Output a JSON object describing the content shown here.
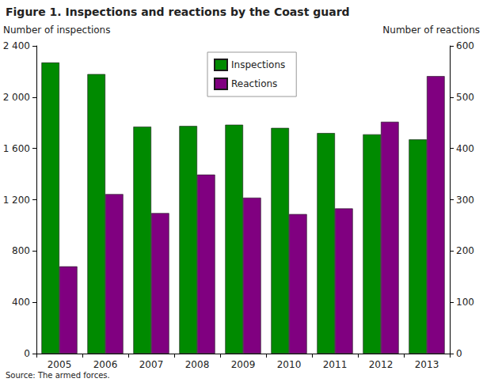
{
  "chart_data": {
    "type": "bar",
    "title": "Figure 1. Inspections and reactions by the Coast guard",
    "source": "Source: The armed forces.",
    "y_label": "Number of inspections",
    "y2_label": "Number of reactions",
    "categories": [
      "2005",
      "2006",
      "2007",
      "2008",
      "2009",
      "2010",
      "2011",
      "2012",
      "2013"
    ],
    "series": [
      {
        "name": "Inspections",
        "color": "#008a00",
        "values": [
          2270,
          2180,
          1770,
          1775,
          1785,
          1760,
          1720,
          1710,
          1670
        ]
      },
      {
        "name": "Reactions",
        "color": "#800080",
        "axis": "y2",
        "values": [
          170,
          311,
          274,
          349,
          304,
          272,
          283,
          452,
          541
        ]
      }
    ],
    "ylim": [
      0,
      2400
    ],
    "yticks": [
      0,
      400,
      800,
      {
        "value": 1200,
        "label": "1 200"
      },
      {
        "value": 1600,
        "label": "1 600"
      },
      {
        "value": 2000,
        "label": "2 000"
      },
      {
        "value": 2400,
        "label": "2 400"
      }
    ],
    "y2lim": [
      0,
      600
    ],
    "y2ticks": [
      0,
      100,
      200,
      300,
      400,
      500,
      600
    ],
    "legend": "top",
    "grid": false
  }
}
